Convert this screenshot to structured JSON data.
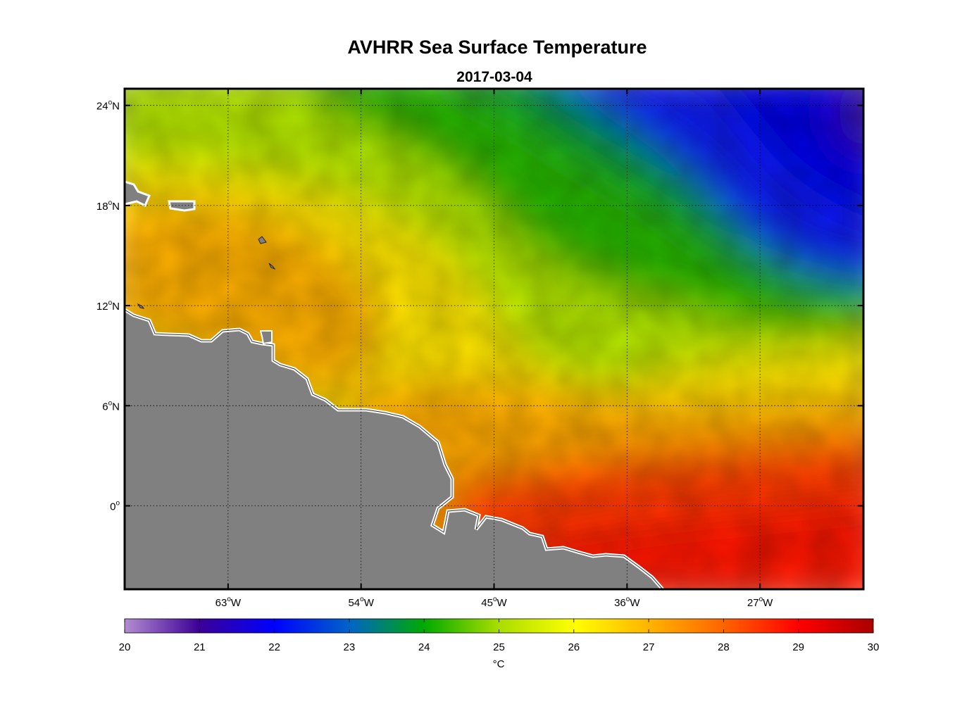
{
  "title": "AVHRR Sea Surface Temperature",
  "subtitle": "2017-03-04",
  "map": {
    "lon_range": [
      -70,
      -20
    ],
    "lat_range": [
      -5,
      25
    ],
    "land_color": "#808080",
    "grid": "on",
    "lat_ticks": [
      {
        "value": 24,
        "label": "24",
        "hemi": "N"
      },
      {
        "value": 18,
        "label": "18",
        "hemi": "N"
      },
      {
        "value": 12,
        "label": "12",
        "hemi": "N"
      },
      {
        "value": 6,
        "label": "6",
        "hemi": "N"
      },
      {
        "value": 0,
        "label": "0",
        "hemi": ""
      }
    ],
    "lon_ticks": [
      {
        "value": -63,
        "label": "63",
        "hemi": "W"
      },
      {
        "value": -54,
        "label": "54",
        "hemi": "W"
      },
      {
        "value": -45,
        "label": "45",
        "hemi": "W"
      },
      {
        "value": -36,
        "label": "36",
        "hemi": "W"
      },
      {
        "value": -27,
        "label": "27",
        "hemi": "W"
      }
    ]
  },
  "colorbar": {
    "min": 20,
    "max": 30,
    "ticks": [
      "20",
      "21",
      "22",
      "23",
      "24",
      "25",
      "26",
      "27",
      "28",
      "29",
      "30"
    ],
    "unit": "°C",
    "colors": [
      "#b48cd2",
      "#3c0096",
      "#0000ff",
      "#0064c8",
      "#00aa00",
      "#aadd00",
      "#ffff00",
      "#ffb400",
      "#ff6400",
      "#ff0000",
      "#aa0000"
    ]
  }
}
